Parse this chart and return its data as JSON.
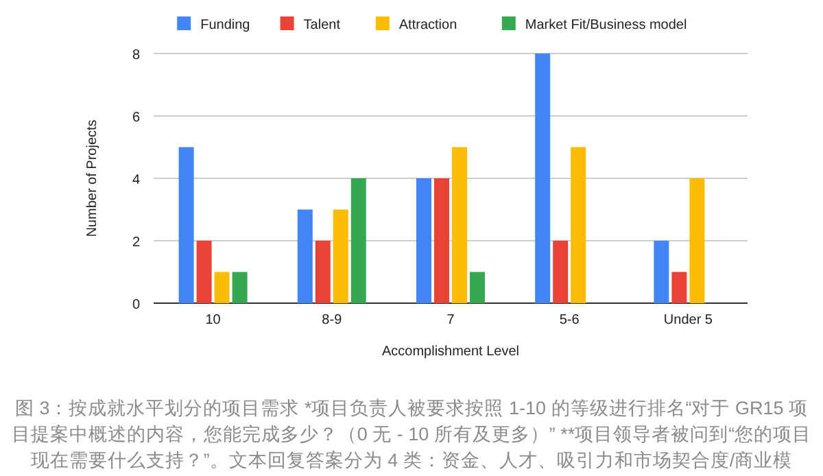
{
  "chart_data": {
    "type": "bar",
    "categories": [
      "10",
      "8-9",
      "7",
      "5-6",
      "Under 5"
    ],
    "series": [
      {
        "name": "Funding",
        "color": "#4285f4",
        "values": [
          5,
          3,
          4,
          8,
          2
        ]
      },
      {
        "name": "Talent",
        "color": "#ea4335",
        "values": [
          2,
          2,
          4,
          2,
          1
        ]
      },
      {
        "name": "Attraction",
        "color": "#fbbc04",
        "values": [
          1,
          3,
          5,
          5,
          4
        ]
      },
      {
        "name": "Market Fit/Business model",
        "color": "#34a853",
        "values": [
          1,
          4,
          1,
          null,
          null
        ]
      }
    ],
    "xlabel": "Accomplishment Level",
    "ylabel": "Number of Projects",
    "ylim": [
      0,
      8
    ],
    "yticks": [
      0,
      2,
      4,
      6,
      8
    ],
    "grid": "y",
    "legend": "top",
    "annotations": [
      "图 3：按成就水平划分的项目需求 *项目负责人被要求按照 1-10 的等级进行排名“对于 GR15 项目提案中概述的内容，您能完成多少？（0 无 - 10 所有及更多）” **项目领导者被问到“您的项目现在需要什么支持？”。文本回复答案分为 4 类：资金、人才、吸引力和市场契合度/商业模"
    ]
  }
}
